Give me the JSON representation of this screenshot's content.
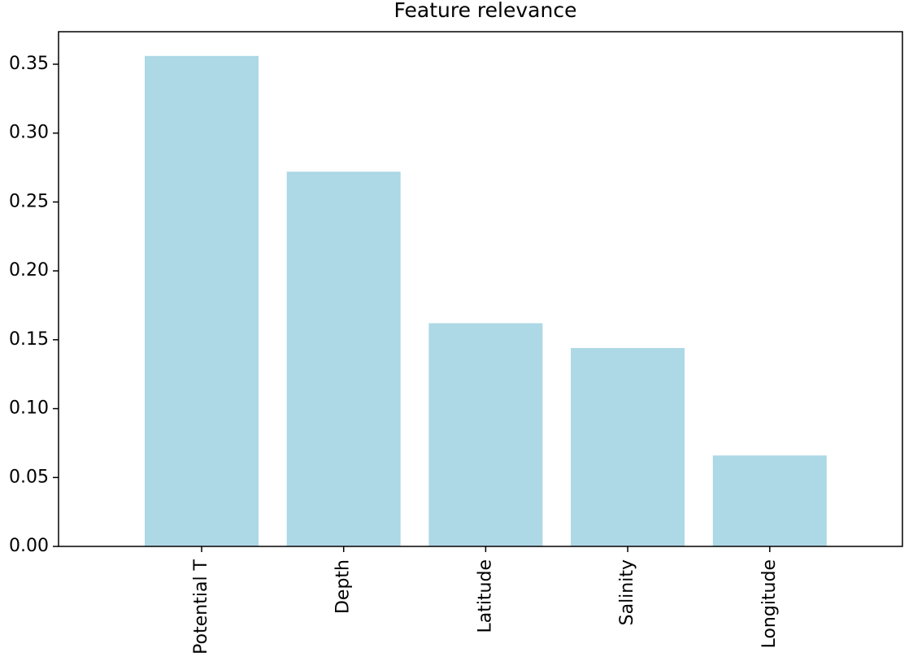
{
  "chart_data": {
    "type": "bar",
    "title": "Feature relevance",
    "categories": [
      "Potential T",
      "Depth",
      "Latitude",
      "Salinity",
      "Longitude"
    ],
    "values": [
      0.356,
      0.272,
      0.162,
      0.144,
      0.066
    ],
    "color": "#add8e6",
    "ylim": [
      0,
      0.3736
    ],
    "yticks": [
      {
        "value": 0,
        "label": "0.00"
      },
      {
        "value": 0.05,
        "label": "0.05"
      },
      {
        "value": 0.1,
        "label": "0.10"
      },
      {
        "value": 0.15,
        "label": "0.15"
      },
      {
        "value": 0.2,
        "label": "0.20"
      },
      {
        "value": 0.25,
        "label": "0.25"
      },
      {
        "value": 0.3,
        "label": "0.30"
      },
      {
        "value": 0.35,
        "label": "0.35"
      }
    ],
    "grid": false
  }
}
